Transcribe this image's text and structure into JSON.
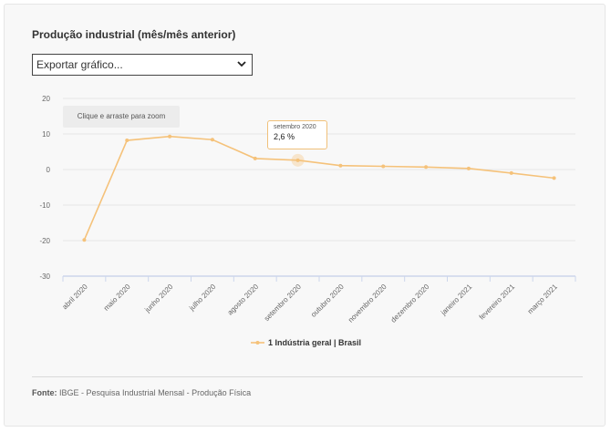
{
  "header": {
    "title": "Produção industrial (mês/mês anterior)",
    "export_label": "Exportar gráfico..."
  },
  "chart_ui": {
    "zoom_hint": "Clique e arraste para zoom",
    "tooltip": {
      "date": "setembro 2020",
      "value": "2,6 %"
    }
  },
  "footer": {
    "source_label": "Fonte:",
    "source_text": "IBGE - Pesquisa Industrial Mensal - Produção Física"
  },
  "colors": {
    "series": "#f5c27a",
    "grid": "#e6e6e6",
    "axis": "#ccd6eb"
  },
  "chart_data": {
    "type": "line",
    "title": "Produção industrial (mês/mês anterior)",
    "categories": [
      "abril 2020",
      "maio 2020",
      "junho 2020",
      "julho 2020",
      "agosto 2020",
      "setembro 2020",
      "outubro 2020",
      "novembro 2020",
      "dezembro 2020",
      "janeiro 2021",
      "fevereiro 2021",
      "março 2021"
    ],
    "yticks": [
      "20",
      "10",
      "0",
      "-10",
      "-20",
      "-30"
    ],
    "ylim": [
      -30,
      20
    ],
    "grid": true,
    "legend": "bottom",
    "series": [
      {
        "name": "1 Indústria geral | Brasil",
        "values": [
          -19.8,
          8.2,
          9.3,
          8.4,
          3.1,
          2.6,
          1.1,
          0.9,
          0.7,
          0.3,
          -1.0,
          -2.4
        ]
      }
    ]
  }
}
